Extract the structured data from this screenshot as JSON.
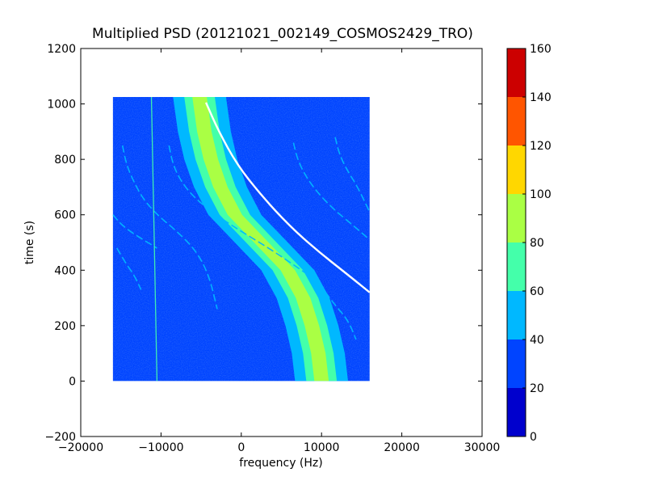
{
  "chart_data": {
    "type": "heatmap",
    "title": "Multiplied PSD (20121021_002149_COSMOS2429_TRO)",
    "xlabel": "frequency (Hz)",
    "ylabel": "time (s)",
    "xlim": [
      -20000,
      30000
    ],
    "ylim": [
      -200,
      1200
    ],
    "xticks": [
      -20000,
      -10000,
      0,
      10000,
      20000,
      30000
    ],
    "yticks": [
      -200,
      0,
      200,
      400,
      600,
      800,
      1000,
      1200
    ],
    "xtick_labels": [
      "−20000",
      "−10000",
      "0",
      "10000",
      "20000",
      "30000"
    ],
    "ytick_labels": [
      "−200",
      "0",
      "200",
      "400",
      "600",
      "800",
      "1000",
      "1200"
    ],
    "data_extent": {
      "x": [
        -16000,
        16000
      ],
      "y": [
        0,
        1025
      ]
    },
    "grid": false,
    "colorbar": {
      "levels": [
        0,
        20,
        40,
        60,
        80,
        100,
        120,
        140,
        160
      ],
      "labels": [
        "0",
        "20",
        "40",
        "60",
        "80",
        "100",
        "120",
        "140",
        "160"
      ],
      "colors": [
        "#0000cd",
        "#0044ff",
        "#00b8ff",
        "#44ffaa",
        "#aaff44",
        "#ffd700",
        "#ff5500",
        "#cc0000"
      ]
    },
    "signal_band": {
      "center": [
        [
          -5200,
          1025
        ],
        [
          -4600,
          900
        ],
        [
          -3800,
          800
        ],
        [
          -2600,
          700
        ],
        [
          -800,
          600
        ],
        [
          2500,
          500
        ],
        [
          5800,
          400
        ],
        [
          7700,
          300
        ],
        [
          8800,
          200
        ],
        [
          9600,
          100
        ],
        [
          10000,
          0
        ]
      ],
      "half_width_outer": 3300,
      "half_width_inner": 1900,
      "half_width_core": 900
    },
    "white_trace": [
      [
        -4400,
        1005
      ],
      [
        -2800,
        900
      ],
      [
        -500,
        780
      ],
      [
        2500,
        670
      ],
      [
        6000,
        560
      ],
      [
        9500,
        470
      ],
      [
        13000,
        390
      ],
      [
        16000,
        320
      ]
    ],
    "secondary_traces": [
      [
        [
          -14800,
          850
        ],
        [
          -14300,
          780
        ],
        [
          -13400,
          720
        ],
        [
          -12300,
          660
        ],
        [
          -10500,
          600
        ],
        [
          -8000,
          540
        ],
        [
          -5600,
          470
        ],
        [
          -4000,
          380
        ],
        [
          -3000,
          260
        ]
      ],
      [
        [
          -9000,
          850
        ],
        [
          -8500,
          780
        ],
        [
          -7500,
          720
        ],
        [
          -5800,
          660
        ],
        [
          -3200,
          600
        ],
        [
          0,
          540
        ],
        [
          3400,
          480
        ],
        [
          6500,
          420
        ],
        [
          9500,
          360
        ],
        [
          11500,
          280
        ],
        [
          13300,
          220
        ],
        [
          14300,
          150
        ]
      ],
      [
        [
          6500,
          860
        ],
        [
          7000,
          800
        ],
        [
          8000,
          740
        ],
        [
          9500,
          680
        ],
        [
          11500,
          620
        ],
        [
          14000,
          560
        ],
        [
          16000,
          510
        ]
      ],
      [
        [
          11700,
          880
        ],
        [
          12200,
          820
        ],
        [
          13200,
          760
        ],
        [
          14500,
          700
        ],
        [
          16000,
          610
        ]
      ],
      [
        [
          -16000,
          600
        ],
        [
          -14800,
          560
        ],
        [
          -12800,
          520
        ],
        [
          -10500,
          480
        ]
      ],
      [
        [
          -15500,
          480
        ],
        [
          -14500,
          430
        ],
        [
          -13300,
          380
        ],
        [
          -12500,
          330
        ]
      ]
    ],
    "vertical_lines": [
      [
        [
          -11200,
          1025
        ],
        [
          -10500,
          0
        ]
      ]
    ]
  }
}
